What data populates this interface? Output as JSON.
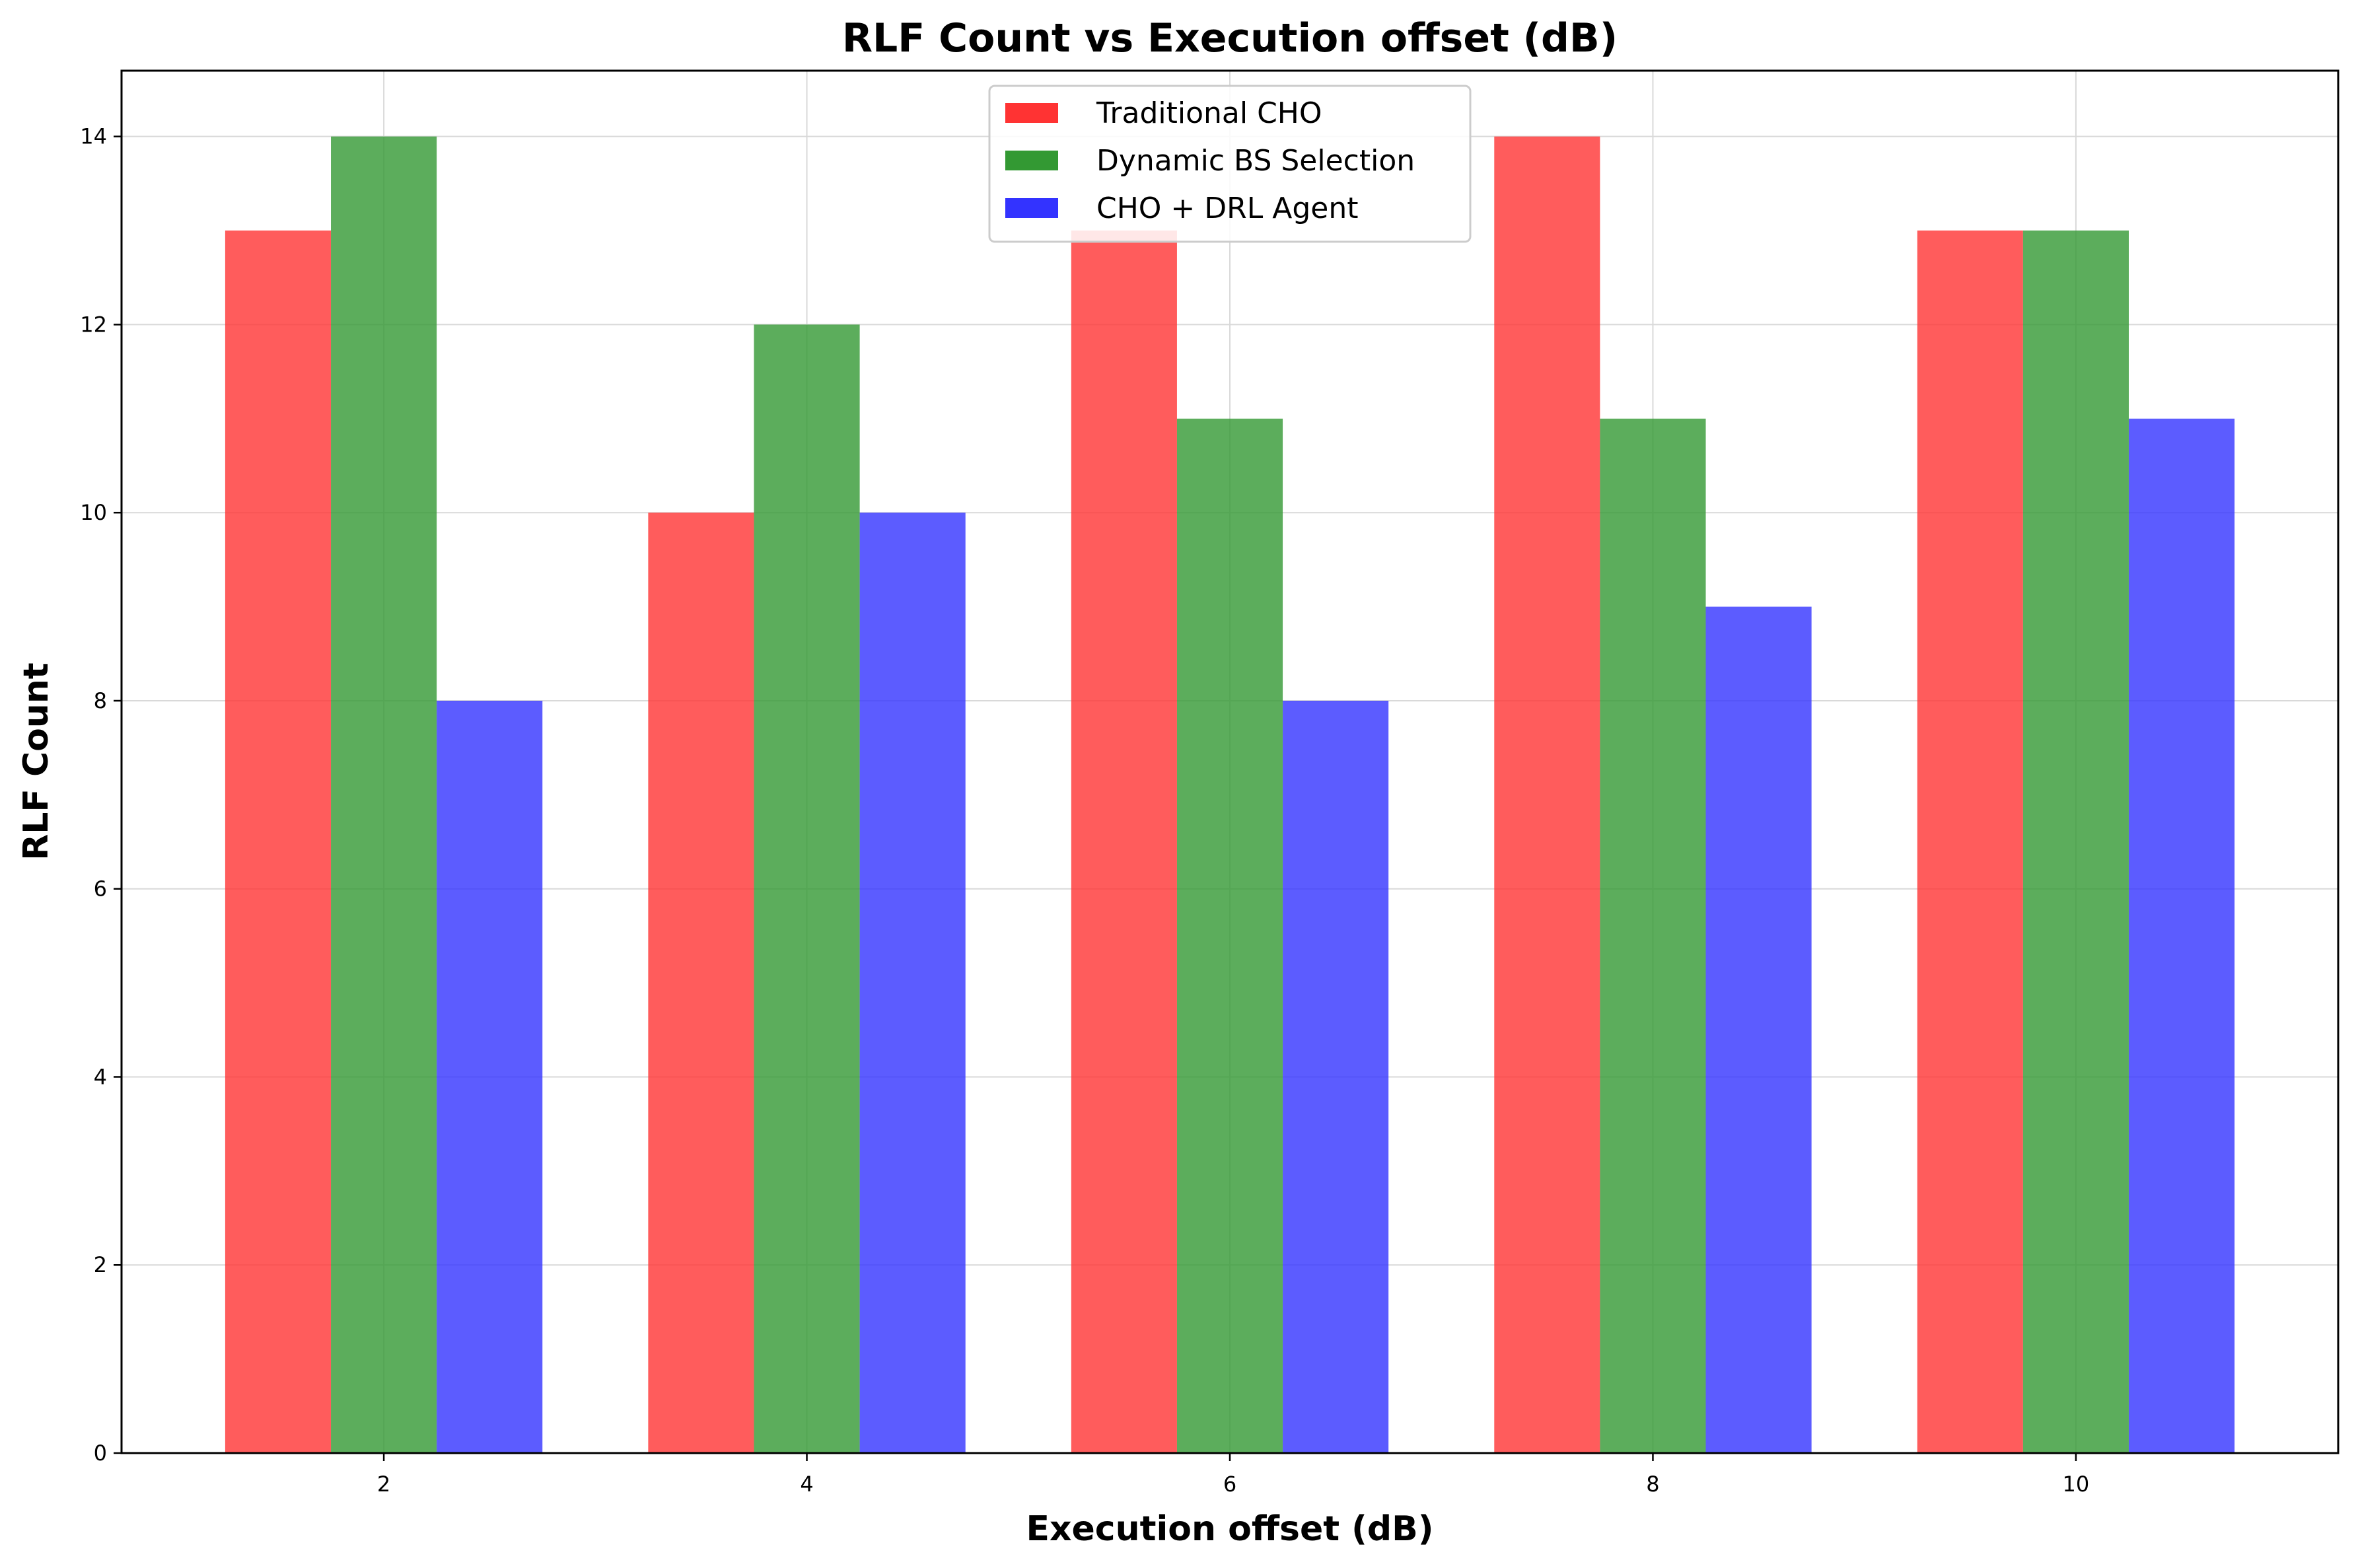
{
  "chart_data": {
    "type": "bar",
    "title": "RLF Count vs Execution offset (dB)",
    "xlabel": "Execution offset (dB)",
    "ylabel": "RLF Count",
    "categories": [
      "2",
      "4",
      "6",
      "8",
      "10"
    ],
    "x_values": [
      2,
      4,
      6,
      8,
      10
    ],
    "xlim": [
      0.76,
      11.24
    ],
    "ylim": [
      0,
      14.7
    ],
    "yticks": [
      0,
      2,
      4,
      6,
      8,
      10,
      12,
      14
    ],
    "grid": true,
    "legend_position": "top-center",
    "series": [
      {
        "name": "Traditional CHO",
        "color": "#ff3333",
        "values": [
          13,
          10,
          13,
          14,
          13
        ]
      },
      {
        "name": "Dynamic BS Selection",
        "color": "#339933",
        "values": [
          14,
          12,
          11,
          11,
          13
        ]
      },
      {
        "name": "CHO + DRL Agent",
        "color": "#3333ff",
        "values": [
          8,
          10,
          8,
          9,
          11
        ]
      }
    ]
  }
}
